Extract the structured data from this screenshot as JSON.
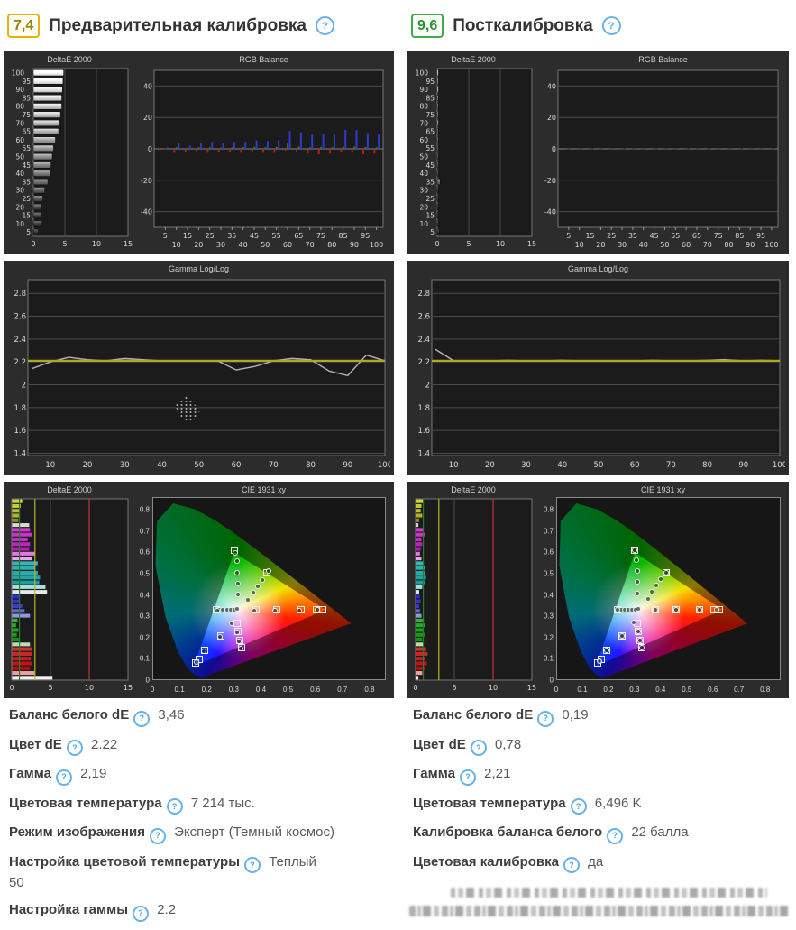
{
  "icons": {
    "help": "?"
  },
  "precal": {
    "score": "7,4",
    "title": "Предварительная калибровка",
    "stats": [
      {
        "label": "Баланс белого dE",
        "value": "3,46"
      },
      {
        "label": "Цвет dE",
        "value": "2.22"
      },
      {
        "label": "Гамма",
        "value": "2,19"
      },
      {
        "label": "Цветовая температура",
        "value": "7 214 тыс."
      },
      {
        "label": "Режим изображения",
        "value": "Эксперт (Темный космос)"
      },
      {
        "label": "Настройка цветовой температуры",
        "value": "Теплый\n50"
      },
      {
        "label": "Настройка гаммы",
        "value": "2.2"
      }
    ]
  },
  "postcal": {
    "score": "9,6",
    "title": "Посткалибровка",
    "stats": [
      {
        "label": "Баланс белого dE",
        "value": "0,19"
      },
      {
        "label": "Цвет dE",
        "value": "0,78"
      },
      {
        "label": "Гамма",
        "value": "2,21"
      },
      {
        "label": "Цветовая температура",
        "value": "6,496 K"
      },
      {
        "label": "Калибровка баланса белого",
        "value": "22 балла"
      },
      {
        "label": "Цветовая калибровка",
        "value": "да"
      }
    ]
  },
  "chart_data": {
    "cie_squares": [
      [
        0.3,
        0.61
      ],
      [
        0.315,
        0.335
      ],
      [
        0.235,
        0.33
      ],
      [
        0.38,
        0.33
      ],
      [
        0.46,
        0.33
      ],
      [
        0.55,
        0.33
      ],
      [
        0.605,
        0.33
      ],
      [
        0.628,
        0.33
      ],
      [
        0.42,
        0.505
      ],
      [
        0.31,
        0.265
      ],
      [
        0.315,
        0.225
      ],
      [
        0.322,
        0.185
      ],
      [
        0.328,
        0.148
      ],
      [
        0.25,
        0.205
      ],
      [
        0.192,
        0.138
      ],
      [
        0.158,
        0.078
      ],
      [
        0.172,
        0.092
      ]
    ],
    "precal": {
      "deltae_levels": {
        "type": "bar",
        "title": "DeltaE 2000",
        "categories": [
          100,
          95,
          90,
          85,
          80,
          75,
          70,
          65,
          60,
          55,
          50,
          45,
          40,
          35,
          30,
          25,
          20,
          15,
          10,
          5
        ],
        "values": [
          4.8,
          4.7,
          4.6,
          4.5,
          4.5,
          4.3,
          4.2,
          4.0,
          3.5,
          3.2,
          3.0,
          2.8,
          2.7,
          2.3,
          1.8,
          1.5,
          1.2,
          1.2,
          1.4,
          0.8
        ],
        "xlim": [
          0,
          15
        ],
        "xticks": [
          0,
          5,
          10,
          15
        ]
      },
      "rgb_balance": {
        "type": "bar",
        "title": "RGB Balance",
        "x": [
          5,
          10,
          15,
          20,
          25,
          30,
          35,
          40,
          45,
          50,
          55,
          60,
          65,
          70,
          75,
          80,
          85,
          90,
          95,
          100
        ],
        "series": [
          {
            "name": "red",
            "color": "#b71c1c",
            "values": [
              -0.5,
              -2.5,
              -2,
              -1.5,
              -2.5,
              -2,
              -2,
              -2.5,
              -2,
              -2.5,
              -2.5,
              -1,
              -1.5,
              -3,
              -3.5,
              -3,
              -2,
              -2.5,
              -3.5,
              -3
            ]
          },
          {
            "name": "green",
            "color": "#2e7d32",
            "values": [
              0.3,
              1,
              0.5,
              1,
              1,
              0.8,
              1,
              1,
              1.2,
              1,
              1.2,
              4,
              1.5,
              1,
              1.2,
              1,
              1.5,
              1.5,
              1.2,
              1
            ]
          },
          {
            "name": "blue",
            "color": "#2d3bd4",
            "values": [
              1,
              3.5,
              2,
              3.5,
              4.5,
              4,
              4.5,
              4.5,
              5.5,
              5,
              5.5,
              11.5,
              10.5,
              9,
              9.5,
              9,
              12,
              12,
              10,
              9.5
            ]
          }
        ],
        "ylim": [
          -50,
          50
        ],
        "yticks": [
          40,
          20,
          0,
          -20,
          -40
        ]
      },
      "gamma": {
        "type": "line",
        "title": "Gamma Log/Log",
        "x": [
          5,
          10,
          15,
          20,
          25,
          30,
          35,
          40,
          45,
          50,
          55,
          60,
          65,
          70,
          75,
          80,
          85,
          90,
          95,
          100
        ],
        "measured": [
          2.14,
          2.2,
          2.24,
          2.22,
          2.21,
          2.23,
          2.22,
          2.21,
          2.21,
          2.21,
          2.21,
          2.13,
          2.16,
          2.21,
          2.23,
          2.22,
          2.12,
          2.08,
          2.26,
          2.21
        ],
        "target": 2.21,
        "ylim": [
          1.38,
          2.92
        ],
        "yticks": [
          2.8,
          2.6,
          2.4,
          2.2,
          2,
          1.8,
          1.6,
          1.4
        ],
        "xticks": [
          10,
          20,
          30,
          40,
          50,
          60,
          70,
          80,
          90,
          100
        ]
      },
      "deltae_colors": {
        "type": "bar",
        "title": "DeltaE 2000",
        "colors": [
          "#d2d23c",
          "#c8c834",
          "#bebe2c",
          "#b4b424",
          "#8e8e1e",
          "#d8d8d8",
          "#d23cd2",
          "#cb34cb",
          "#c42cc4",
          "#bd24bd",
          "#b61cb6",
          "#e276e2",
          "#eda6ed",
          "#36b6b6",
          "#2fb0b0",
          "#28aaaa",
          "#21a4a4",
          "#1a9e9e",
          "#aadede",
          "#e6e6e6",
          "#2c2cd2",
          "#3434ca",
          "#3c3cc2",
          "#6666d4",
          "#9494e2",
          "#2cb42c",
          "#24ac24",
          "#1ca41c",
          "#149c14",
          "#0c940c",
          "#b4e0b4",
          "#d23030",
          "#ca2828",
          "#c22020",
          "#ba1818",
          "#b21010",
          "#eaa0a0",
          "#f2f2f2"
        ],
        "values": [
          1.3,
          1.1,
          0.9,
          1.0,
          0.8,
          2.2,
          2.3,
          2.5,
          2.0,
          2.3,
          2.2,
          2.9,
          2.5,
          3.3,
          3.0,
          3.3,
          3.6,
          3.5,
          4.3,
          4.5,
          0.9,
          1.0,
          1.3,
          1.6,
          2.3,
          0.7,
          0.5,
          0.8,
          0.6,
          0.9,
          2.3,
          2.5,
          2.6,
          2.4,
          2.6,
          2.3,
          2.9,
          5.2
        ],
        "ref_lines": [
          {
            "value": 1,
            "color": "#2d7a2d"
          },
          {
            "value": 3,
            "color": "#b8b430"
          },
          {
            "value": 10,
            "color": "#c03434"
          }
        ],
        "xlim": [
          0,
          15
        ],
        "xticks": [
          0,
          5,
          10,
          15
        ]
      },
      "cie": {
        "type": "scatter",
        "title": "CIE 1931 xy",
        "xticks": [
          0,
          0.1,
          0.2,
          0.3,
          0.4,
          0.5,
          0.6,
          0.7,
          0.8
        ],
        "yticks": [
          0,
          0.1,
          0.2,
          0.3,
          0.4,
          0.5,
          0.6,
          0.7,
          0.8
        ],
        "dots": [
          [
            0.303,
            0.598
          ],
          [
            0.31,
            0.56
          ],
          [
            0.312,
            0.507
          ],
          [
            0.313,
            0.455
          ],
          [
            0.314,
            0.403
          ],
          [
            0.353,
            0.378
          ],
          [
            0.37,
            0.41
          ],
          [
            0.388,
            0.442
          ],
          [
            0.405,
            0.472
          ],
          [
            0.427,
            0.512
          ],
          [
            0.245,
            0.328
          ],
          [
            0.259,
            0.328
          ],
          [
            0.273,
            0.329
          ],
          [
            0.287,
            0.329
          ],
          [
            0.3,
            0.33
          ],
          [
            0.238,
            0.327
          ],
          [
            0.374,
            0.326
          ],
          [
            0.453,
            0.326
          ],
          [
            0.543,
            0.327
          ],
          [
            0.61,
            0.328
          ],
          [
            0.291,
            0.264
          ],
          [
            0.311,
            0.221
          ],
          [
            0.318,
            0.181
          ],
          [
            0.324,
            0.144
          ],
          [
            0.246,
            0.201
          ],
          [
            0.188,
            0.134
          ],
          [
            0.161,
            0.081
          ],
          [
            0.31,
            0.332
          ]
        ]
      }
    },
    "postcal": {
      "deltae_levels": {
        "type": "bar",
        "title": "DeltaE 2000",
        "categories": [
          100,
          95,
          90,
          85,
          80,
          75,
          70,
          65,
          60,
          55,
          50,
          45,
          40,
          35,
          30,
          25,
          20,
          15,
          10,
          5
        ],
        "values": [
          0.2,
          0.15,
          0.2,
          0.15,
          0.1,
          0.15,
          0.2,
          0.1,
          0.15,
          0.1,
          0.1,
          0.15,
          0.1,
          0.45,
          0.1,
          0.15,
          0.1,
          0.1,
          0.2,
          0.3
        ],
        "xlim": [
          0,
          15
        ],
        "xticks": [
          0,
          5,
          10,
          15
        ]
      },
      "rgb_balance": {
        "type": "bar",
        "title": "RGB Balance",
        "x": [
          5,
          10,
          15,
          20,
          25,
          30,
          35,
          40,
          45,
          50,
          55,
          60,
          65,
          70,
          75,
          80,
          85,
          90,
          95,
          100
        ],
        "series": [
          {
            "name": "red",
            "color": "#b71c1c",
            "values": [
              -0.3,
              -0.2,
              -0.4,
              -0.3,
              -0.2,
              -0.3,
              -0.4,
              -0.2,
              -0.3,
              -0.2,
              -0.3,
              -0.4,
              -0.3,
              -0.2,
              -0.3,
              -0.4,
              -0.2,
              -0.3,
              -0.2,
              -0.3
            ]
          },
          {
            "name": "green",
            "color": "#2e7d32",
            "values": [
              0.2,
              0.3,
              0.2,
              0.2,
              0.3,
              0.2,
              0.3,
              0.2,
              0.2,
              0.3,
              0.2,
              0.2,
              0.3,
              0.2,
              0.2,
              0.3,
              0.2,
              0.3,
              0.2,
              0.2
            ]
          },
          {
            "name": "blue",
            "color": "#2d3bd4",
            "values": [
              0.5,
              0.4,
              0.3,
              0.5,
              0.4,
              0.3,
              0.4,
              0.5,
              0.3,
              0.4,
              0.5,
              0.3,
              0.4,
              0.3,
              0.5,
              0.4,
              0.3,
              0.4,
              0.5,
              0.4
            ]
          }
        ],
        "ylim": [
          -50,
          50
        ],
        "yticks": [
          40,
          20,
          0,
          -20,
          -40
        ]
      },
      "gamma": {
        "type": "line",
        "title": "Gamma Log/Log",
        "x": [
          5,
          10,
          15,
          20,
          25,
          30,
          35,
          40,
          45,
          50,
          55,
          60,
          65,
          70,
          75,
          80,
          85,
          90,
          95,
          100
        ],
        "measured": [
          2.31,
          2.21,
          2.21,
          2.21,
          2.215,
          2.21,
          2.21,
          2.215,
          2.21,
          2.21,
          2.21,
          2.21,
          2.215,
          2.21,
          2.21,
          2.215,
          2.22,
          2.21,
          2.215,
          2.21
        ],
        "target": 2.21,
        "ylim": [
          1.38,
          2.92
        ],
        "yticks": [
          2.8,
          2.6,
          2.4,
          2.2,
          2,
          1.8,
          1.6,
          1.4
        ],
        "xticks": [
          10,
          20,
          30,
          40,
          50,
          60,
          70,
          80,
          90,
          100
        ]
      },
      "deltae_colors": {
        "type": "bar",
        "title": "DeltaE 2000",
        "colors": [
          "#d2d23c",
          "#c8c834",
          "#bebe2c",
          "#b4b424",
          "#8e8e1e",
          "#d8d8d8",
          "#d23cd2",
          "#cb34cb",
          "#c42cc4",
          "#bd24bd",
          "#b61cb6",
          "#e276e2",
          "#eda6ed",
          "#36b6b6",
          "#2fb0b0",
          "#28aaaa",
          "#21a4a4",
          "#1a9e9e",
          "#aadede",
          "#e6e6e6",
          "#2c2cd2",
          "#3434ca",
          "#3c3cc2",
          "#6666d4",
          "#9494e2",
          "#2cb42c",
          "#24ac24",
          "#1ca41c",
          "#149c14",
          "#0c940c",
          "#b4e0b4",
          "#d23030",
          "#ca2828",
          "#c22020",
          "#ba1818",
          "#b21010",
          "#eaa0a0",
          "#f2f2f2"
        ],
        "values": [
          0.9,
          0.7,
          0.6,
          0.8,
          0.4,
          0.3,
          0.9,
          1.1,
          0.7,
          0.8,
          0.6,
          0.5,
          0.7,
          1.0,
          1.2,
          1.1,
          1.3,
          1.2,
          0.8,
          0.4,
          0.5,
          0.6,
          0.4,
          0.5,
          0.7,
          1.0,
          1.2,
          0.9,
          1.1,
          0.8,
          0.9,
          1.3,
          1.5,
          1.2,
          1.4,
          1.1,
          0.8,
          0.3
        ],
        "ref_lines": [
          {
            "value": 1,
            "color": "#2d7a2d"
          },
          {
            "value": 3,
            "color": "#b8b430"
          },
          {
            "value": 10,
            "color": "#c03434"
          }
        ],
        "xlim": [
          0,
          15
        ],
        "xticks": [
          0,
          5,
          10,
          15
        ]
      },
      "cie": {
        "type": "scatter",
        "title": "CIE 1931 xy",
        "xticks": [
          0,
          0.1,
          0.2,
          0.3,
          0.4,
          0.5,
          0.6,
          0.7,
          0.8
        ],
        "yticks": [
          0,
          0.1,
          0.2,
          0.3,
          0.4,
          0.5,
          0.6,
          0.7,
          0.8
        ],
        "dots": [
          [
            0.3,
            0.61
          ],
          [
            0.308,
            0.565
          ],
          [
            0.309,
            0.512
          ],
          [
            0.31,
            0.46
          ],
          [
            0.311,
            0.408
          ],
          [
            0.35,
            0.382
          ],
          [
            0.366,
            0.414
          ],
          [
            0.383,
            0.446
          ],
          [
            0.4,
            0.476
          ],
          [
            0.42,
            0.505
          ],
          [
            0.248,
            0.33
          ],
          [
            0.262,
            0.33
          ],
          [
            0.276,
            0.33
          ],
          [
            0.29,
            0.33
          ],
          [
            0.302,
            0.33
          ],
          [
            0.235,
            0.33
          ],
          [
            0.38,
            0.33
          ],
          [
            0.46,
            0.33
          ],
          [
            0.55,
            0.33
          ],
          [
            0.617,
            0.33
          ],
          [
            0.295,
            0.268
          ],
          [
            0.315,
            0.225
          ],
          [
            0.322,
            0.185
          ],
          [
            0.328,
            0.148
          ],
          [
            0.25,
            0.205
          ],
          [
            0.192,
            0.138
          ],
          [
            0.165,
            0.085
          ],
          [
            0.315,
            0.335
          ]
        ]
      }
    }
  }
}
